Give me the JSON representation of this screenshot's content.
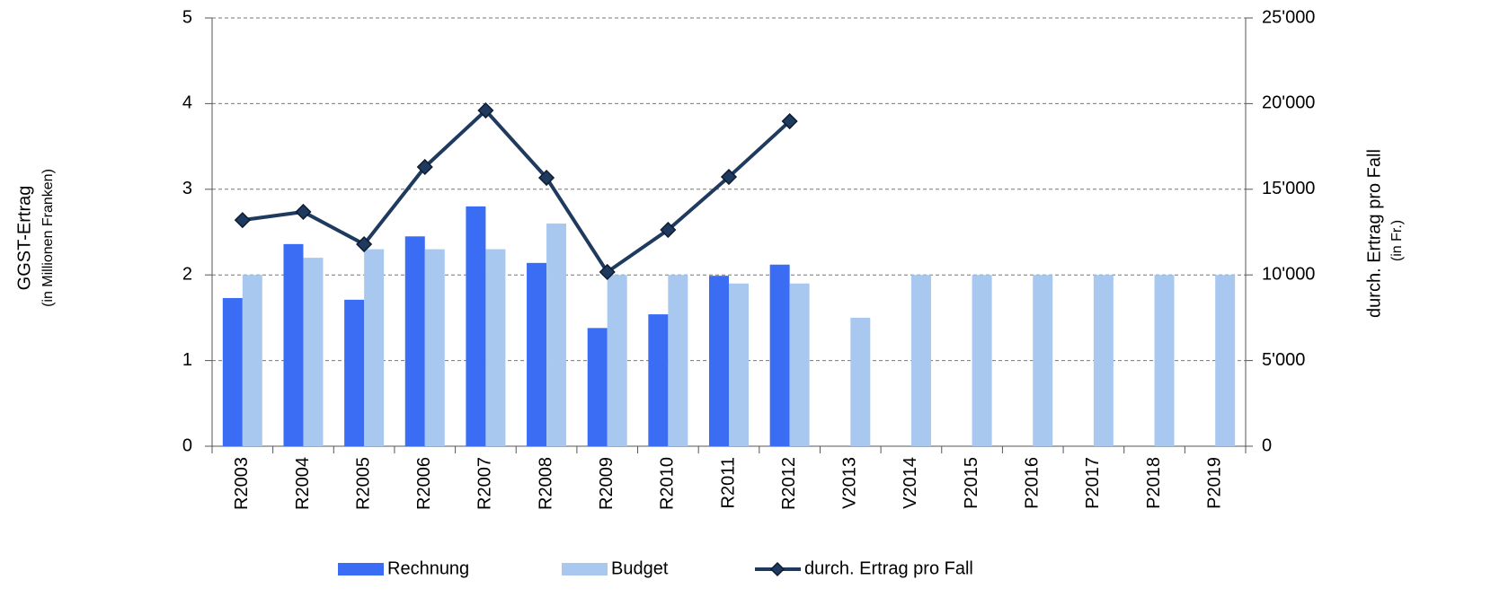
{
  "chart_data": {
    "type": "bar_line",
    "y_label": "GGST-Ertrag",
    "y_sublabel": "(in Millionen Franken)",
    "y2_label": "durch. Ertrag pro Fall",
    "y2_sublabel": "(in Fr.)",
    "categories": [
      "R2003",
      "R2004",
      "R2005",
      "R2006",
      "R2007",
      "R2008",
      "R2009",
      "R2010",
      "R2011",
      "R2012",
      "V2013",
      "V2014",
      "P2015",
      "P2016",
      "P2017",
      "P2018",
      "P2019"
    ],
    "series": [
      {
        "name": "Rechnung",
        "type": "bar",
        "color": "#3b6cf4",
        "values": [
          1.73,
          2.36,
          1.71,
          2.45,
          2.8,
          2.14,
          1.38,
          1.54,
          1.99,
          2.12,
          null,
          null,
          null,
          null,
          null,
          null,
          null
        ]
      },
      {
        "name": "Budget",
        "type": "bar",
        "color": "#a8c8ef",
        "values": [
          2.0,
          2.2,
          2.3,
          2.3,
          2.3,
          2.6,
          2.0,
          2.0,
          1.9,
          1.9,
          1.5,
          2.0,
          2.0,
          2.0,
          2.0,
          2.0,
          2.0
        ]
      },
      {
        "name": "durch. Ertrag pro Fall",
        "type": "line",
        "axis": "y2",
        "color": "#1f3a5f",
        "values": [
          13200,
          13680,
          11790,
          16300,
          19600,
          15670,
          10170,
          12630,
          15720,
          18970,
          null,
          null,
          null,
          null,
          null,
          null,
          null
        ]
      }
    ],
    "ylim": [
      0,
      5
    ],
    "yticks": [
      0,
      1,
      2,
      3,
      4,
      5
    ],
    "y2lim": [
      0,
      25000
    ],
    "y2ticks": [
      0,
      {
        "value": 5000,
        "label": "5'000"
      },
      {
        "value": 10000,
        "label": "10'000"
      },
      {
        "value": 15000,
        "label": "15'000"
      },
      {
        "value": 20000,
        "label": "20'000"
      },
      {
        "value": 25000,
        "label": "25'000"
      }
    ],
    "grid": true,
    "legend": "bottom"
  }
}
